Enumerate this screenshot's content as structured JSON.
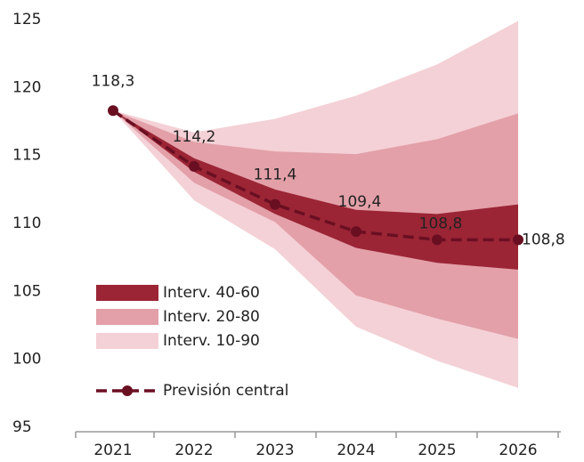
{
  "chart_data": {
    "type": "fan",
    "categories": [
      "2021",
      "2022",
      "2023",
      "2024",
      "2025",
      "2026"
    ],
    "ylim": [
      95,
      125
    ],
    "yticks": [
      95,
      100,
      105,
      110,
      115,
      120,
      125
    ],
    "bands": [
      {
        "name": "Interv. 10-90",
        "color": "#f4d1d6",
        "upper": [
          118.3,
          116.7,
          117.7,
          119.4,
          121.7,
          124.9
        ],
        "lower": [
          118.3,
          111.7,
          108.1,
          102.4,
          99.9,
          97.9
        ]
      },
      {
        "name": "Interv. 20-80",
        "color": "#e3a0a9",
        "upper": [
          118.3,
          116.0,
          115.3,
          115.1,
          116.2,
          118.1
        ],
        "lower": [
          118.3,
          113.0,
          110.1,
          104.7,
          103.0,
          101.5
        ]
      },
      {
        "name": "Interv. 40-60",
        "color": "#9b2535",
        "upper": [
          118.3,
          114.8,
          112.5,
          111.0,
          110.7,
          111.4
        ],
        "lower": [
          118.3,
          113.8,
          110.7,
          108.2,
          107.1,
          106.6
        ]
      }
    ],
    "series": [
      {
        "name": "Previsión central",
        "color": "#6a0f22",
        "values": [
          118.3,
          114.2,
          111.4,
          109.4,
          108.8,
          108.8
        ],
        "value_labels": [
          "118,3",
          "114,2",
          "111,4",
          "109,4",
          "108,8",
          "108,8"
        ]
      }
    ]
  }
}
